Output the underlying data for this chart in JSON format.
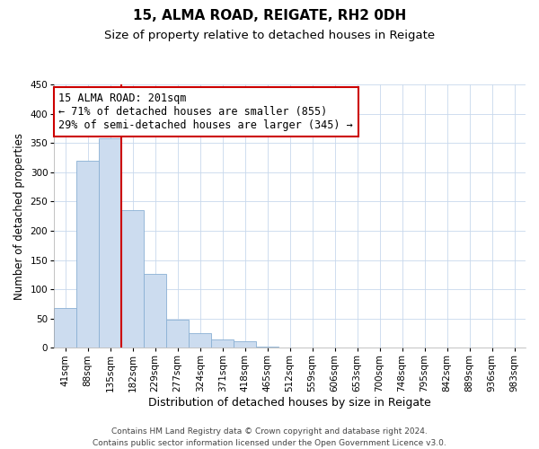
{
  "title": "15, ALMA ROAD, REIGATE, RH2 0DH",
  "subtitle": "Size of property relative to detached houses in Reigate",
  "xlabel": "Distribution of detached houses by size in Reigate",
  "ylabel": "Number of detached properties",
  "bin_labels": [
    "41sqm",
    "88sqm",
    "135sqm",
    "182sqm",
    "229sqm",
    "277sqm",
    "324sqm",
    "371sqm",
    "418sqm",
    "465sqm",
    "512sqm",
    "559sqm",
    "606sqm",
    "653sqm",
    "700sqm",
    "748sqm",
    "795sqm",
    "842sqm",
    "889sqm",
    "936sqm",
    "983sqm"
  ],
  "bar_heights": [
    68,
    320,
    358,
    235,
    127,
    48,
    25,
    15,
    11,
    2,
    0,
    1,
    0,
    0,
    1,
    0,
    0,
    0,
    0,
    0,
    0
  ],
  "bar_color": "#ccdcef",
  "bar_edgecolor": "#8ab0d4",
  "vline_x": 3.0,
  "vline_color": "#cc0000",
  "ylim": [
    0,
    450
  ],
  "yticks": [
    0,
    50,
    100,
    150,
    200,
    250,
    300,
    350,
    400,
    450
  ],
  "annotation_title": "15 ALMA ROAD: 201sqm",
  "annotation_line1": "← 71% of detached houses are smaller (855)",
  "annotation_line2": "29% of semi-detached houses are larger (345) →",
  "annotation_box_color": "#ffffff",
  "annotation_box_edgecolor": "#cc0000",
  "footer_line1": "Contains HM Land Registry data © Crown copyright and database right 2024.",
  "footer_line2": "Contains public sector information licensed under the Open Government Licence v3.0.",
  "title_fontsize": 11,
  "subtitle_fontsize": 9.5,
  "xlabel_fontsize": 9,
  "ylabel_fontsize": 8.5,
  "tick_fontsize": 7.5,
  "footer_fontsize": 6.5,
  "annotation_fontsize": 8.5
}
